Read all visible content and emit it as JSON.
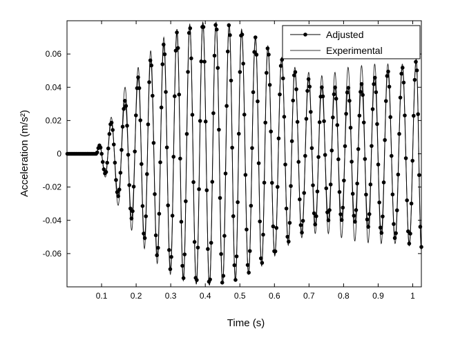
{
  "chart_data": {
    "type": "line",
    "title": "",
    "xlabel": "Time (s)",
    "ylabel": "Acceleration (m/s²)",
    "xlim": [
      0,
      1.025
    ],
    "ylim": [
      -0.08,
      0.08
    ],
    "xticks": [
      0.1,
      0.2,
      0.3,
      0.4,
      0.5,
      0.6,
      0.7,
      0.8,
      0.9,
      1.0
    ],
    "xtick_labels": [
      "0.1",
      "0.2",
      "0.3",
      "0.4",
      "0.5",
      "0.6",
      "0.7",
      "0.8",
      "0.9",
      "1"
    ],
    "yticks": [
      -0.06,
      -0.04,
      -0.02,
      0,
      0.02,
      0.04,
      0.06
    ],
    "ytick_labels": [
      "-0.06",
      "-0.04",
      "-0.02",
      "0",
      "0.02",
      "0.04",
      "0.06"
    ],
    "grid": false,
    "legend_placement": "top-right",
    "onset_time": 0.085,
    "peak_times": [
      0.094,
      0.128,
      0.168,
      0.206,
      0.242,
      0.28,
      0.318,
      0.355,
      0.393,
      0.431,
      0.469,
      0.505,
      0.545,
      0.581,
      0.621,
      0.659,
      0.699,
      0.737,
      0.775,
      0.813,
      0.852,
      0.89,
      0.928,
      0.97,
      1.01
    ],
    "series": [
      {
        "name": "Adjusted",
        "style": "line-with-dot-markers",
        "peak_amplitudes": [
          0.005,
          0.019,
          0.032,
          0.046,
          0.057,
          0.066,
          0.073,
          0.077,
          0.079,
          0.079,
          0.078,
          0.074,
          0.07,
          0.064,
          0.057,
          0.05,
          0.045,
          0.04,
          0.04,
          0.04,
          0.042,
          0.046,
          0.05,
          0.052,
          0.056
        ],
        "final_value": -0.056
      },
      {
        "name": "Experimental",
        "style": "thin-line",
        "peak_amplitudes": [
          0.006,
          0.022,
          0.04,
          0.052,
          0.062,
          0.07,
          0.075,
          0.078,
          0.079,
          0.079,
          0.078,
          0.075,
          0.07,
          0.065,
          0.058,
          0.052,
          0.049,
          0.047,
          0.049,
          0.052,
          0.053,
          0.054,
          0.054,
          0.054,
          0.057
        ],
        "final_value": -0.058
      }
    ]
  }
}
